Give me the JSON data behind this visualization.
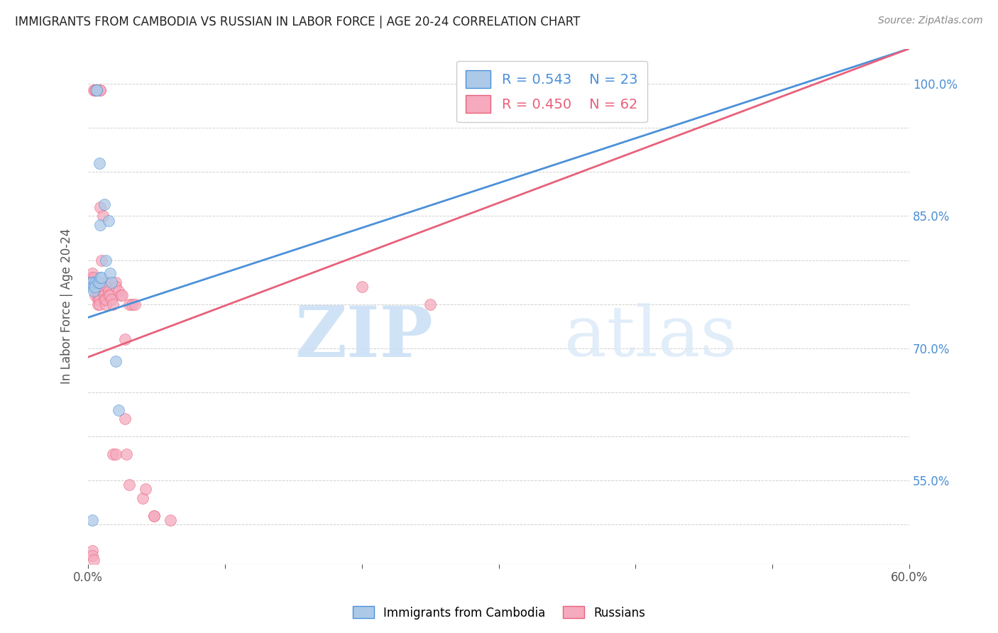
{
  "title": "IMMIGRANTS FROM CAMBODIA VS RUSSIAN IN LABOR FORCE | AGE 20-24 CORRELATION CHART",
  "source": "Source: ZipAtlas.com",
  "ylabel": "In Labor Force | Age 20-24",
  "xlim": [
    0.0,
    0.6
  ],
  "ylim": [
    0.455,
    1.04
  ],
  "cambodia_R": 0.543,
  "cambodia_N": 23,
  "russian_R": 0.45,
  "russian_N": 62,
  "cambodia_color": "#adc9e8",
  "russian_color": "#f5aabe",
  "cambodia_line_color": "#4a90d9",
  "russian_line_color": "#e8607a",
  "legend_cambodia": "Immigrants from Cambodia",
  "legend_russian": "Russians",
  "watermark_zip": "ZIP",
  "watermark_atlas": "atlas",
  "cambodia_line_x0": 0.0,
  "cambodia_line_y0": 0.735,
  "cambodia_line_x1": 0.6,
  "cambodia_line_y1": 1.04,
  "russian_line_x0": 0.0,
  "russian_line_y0": 0.69,
  "russian_line_x1": 0.6,
  "russian_line_y1": 1.04,
  "cambodia_x": [
    0.002,
    0.003,
    0.003,
    0.004,
    0.004,
    0.005,
    0.005,
    0.006,
    0.006,
    0.007,
    0.008,
    0.008,
    0.009,
    0.009,
    0.01,
    0.012,
    0.013,
    0.015,
    0.016,
    0.017,
    0.02,
    0.022,
    0.003
  ],
  "cambodia_y": [
    0.775,
    0.775,
    0.77,
    0.77,
    0.765,
    0.775,
    0.77,
    0.993,
    0.993,
    0.775,
    0.775,
    0.91,
    0.84,
    0.78,
    0.78,
    0.863,
    0.8,
    0.845,
    0.785,
    0.775,
    0.685,
    0.63,
    0.505
  ],
  "russian_x": [
    0.002,
    0.003,
    0.003,
    0.003,
    0.004,
    0.004,
    0.004,
    0.005,
    0.005,
    0.005,
    0.005,
    0.006,
    0.006,
    0.006,
    0.007,
    0.007,
    0.007,
    0.008,
    0.008,
    0.008,
    0.009,
    0.009,
    0.009,
    0.01,
    0.01,
    0.011,
    0.011,
    0.012,
    0.012,
    0.013,
    0.013,
    0.014,
    0.014,
    0.015,
    0.015,
    0.016,
    0.017,
    0.018,
    0.02,
    0.02,
    0.022,
    0.024,
    0.025,
    0.027,
    0.03,
    0.032,
    0.034,
    0.04,
    0.048,
    0.2,
    0.25,
    0.003,
    0.003,
    0.004,
    0.018,
    0.02,
    0.027,
    0.028,
    0.03,
    0.042,
    0.048,
    0.06
  ],
  "russian_y": [
    0.78,
    0.775,
    0.785,
    0.775,
    0.78,
    0.775,
    0.993,
    0.993,
    0.993,
    0.775,
    0.76,
    0.77,
    0.765,
    0.765,
    0.76,
    0.755,
    0.75,
    0.76,
    0.755,
    0.75,
    0.86,
    0.993,
    0.993,
    0.77,
    0.8,
    0.85,
    0.765,
    0.76,
    0.755,
    0.75,
    0.755,
    0.775,
    0.77,
    0.765,
    0.76,
    0.76,
    0.755,
    0.75,
    0.775,
    0.77,
    0.765,
    0.76,
    0.76,
    0.71,
    0.75,
    0.75,
    0.75,
    0.53,
    0.51,
    0.77,
    0.75,
    0.47,
    0.465,
    0.46,
    0.58,
    0.58,
    0.62,
    0.58,
    0.545,
    0.54,
    0.51,
    0.505
  ]
}
